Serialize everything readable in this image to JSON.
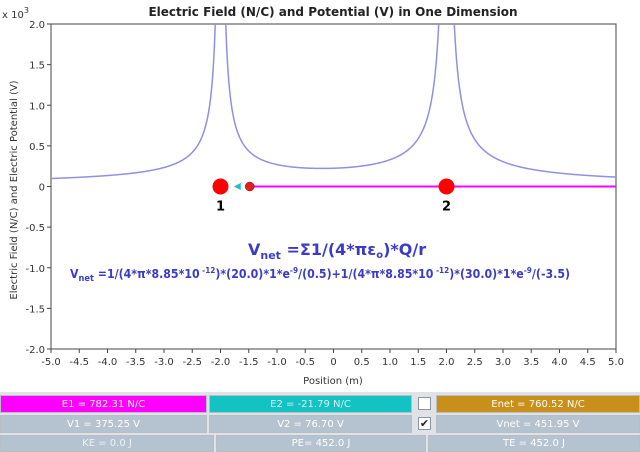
{
  "chart": {
    "title": "Electric Field (N/C) and Potential (V) in One Dimension",
    "exponent_label": "x 10",
    "exponent_power": "3",
    "ylabel": "Electric Field (N/C) and Electric Potential (V)",
    "xlabel": "Position (m)",
    "x_ticks": [
      "-5.0",
      "-4.5",
      "-4.0",
      "-3.5",
      "-3.0",
      "-2.5",
      "-2.0",
      "-1.5",
      "-1.0",
      "-0.5",
      "0",
      "0.5",
      "1.0",
      "1.5",
      "2.0",
      "2.5",
      "3.0",
      "3.5",
      "4.0",
      "4.5",
      "5.0"
    ],
    "y_ticks": [
      "2.0",
      "1.5",
      "1.0",
      "0.5",
      "0",
      "-0.5",
      "-1.0",
      "-1.5",
      "-2.0"
    ]
  },
  "chart_data": {
    "type": "line",
    "title": "Electric Field (N/C) and Potential (V) in One Dimension",
    "xlabel": "Position (m)",
    "ylabel": "Electric Field (N/C) and Electric Potential (V)",
    "xlim": [
      -5.0,
      5.0
    ],
    "ylim": [
      -2000,
      2000
    ],
    "y_scale_label": "x 10^3",
    "grid": false,
    "charges": [
      {
        "label": "1",
        "x": -2.0,
        "q_nC": 20.0
      },
      {
        "label": "2",
        "x": 2.0,
        "q_nC": 30.0
      }
    ],
    "test_charge_x": -1.5,
    "series": [
      {
        "type": "potential",
        "charge_positions": [
          -2.0,
          2.0
        ],
        "charges_nC": [
          20.0,
          30.0
        ],
        "color": "#8f8fe6"
      },
      {
        "type": "field_segment",
        "x_range": [
          -1.5,
          5.0
        ],
        "y": 0,
        "color": "#ff00ff"
      }
    ]
  },
  "equations": {
    "general_main": "V",
    "general_sub": "net",
    "general_rest": " =Σ1/(4*πε",
    "general_eps_sub": "o",
    "general_tail": ")*Q/r",
    "specific_main": "V",
    "specific_sub": "net",
    "specific_part1": " =1/(4*π*8.85*10",
    "specific_exp1": " -12",
    "specific_part2": ")*(20.0)*1*e",
    "specific_exp2": "-9",
    "specific_part3": "/(0.5)+1/(4*π*8.85*10",
    "specific_exp3": " -12",
    "specific_part4": ")*(30.0)*1*e",
    "specific_exp4": "-9",
    "specific_part5": "/(-3.5)"
  },
  "charges": {
    "label1": "1",
    "label2": "2"
  },
  "panel": {
    "e1": "E1 = 782.31 N/C",
    "e2": "E2 = -21.79 N/C",
    "enet": "Enet = 760.52 N/C",
    "v1": "V1 = 375.25 V",
    "v2": "V2 = 76.70 V",
    "vnet": "Vnet = 451.95 V",
    "ke": "KE = 0.0 J",
    "pe": "PE= 452.0 J",
    "te": "TE = 452.0 J",
    "check1": "",
    "check2": "✔"
  },
  "colors": {
    "e1": "#ff00ff",
    "e2": "#13c2c2",
    "enet": "#c8901a",
    "muted": "#b5c2cf",
    "charge": "#ff0000",
    "potential": "#8f8fe6",
    "field": "#ff00ff"
  }
}
